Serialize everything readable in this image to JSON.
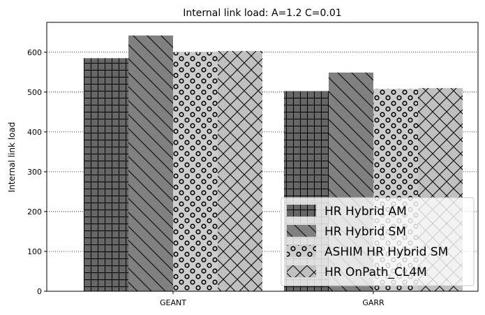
{
  "chart_data": {
    "type": "bar",
    "title": "Internal link load: A=1.2 C=0.01",
    "xlabel": "",
    "ylabel": "Internal link load",
    "categories": [
      "GEANT",
      "GARR"
    ],
    "series": [
      {
        "name": "HR Hybrid AM",
        "values": [
          585,
          502
        ],
        "color": "#666666",
        "hatch": "grid"
      },
      {
        "name": "HR Hybrid SM",
        "values": [
          642,
          549
        ],
        "color": "#808080",
        "hatch": "backslash"
      },
      {
        "name": "ASHIM HR Hybrid SM",
        "values": [
          600,
          508
        ],
        "color": "#cccccc",
        "hatch": "circles"
      },
      {
        "name": "HR OnPath_CL4M",
        "values": [
          603,
          510
        ],
        "color": "#c0c0c0",
        "hatch": "crosshatch"
      }
    ],
    "ylim": [
      0,
      675
    ],
    "yticks": [
      0,
      100,
      200,
      300,
      400,
      500,
      600
    ],
    "grid": "y-dotted",
    "legend_position": "lower-right"
  }
}
